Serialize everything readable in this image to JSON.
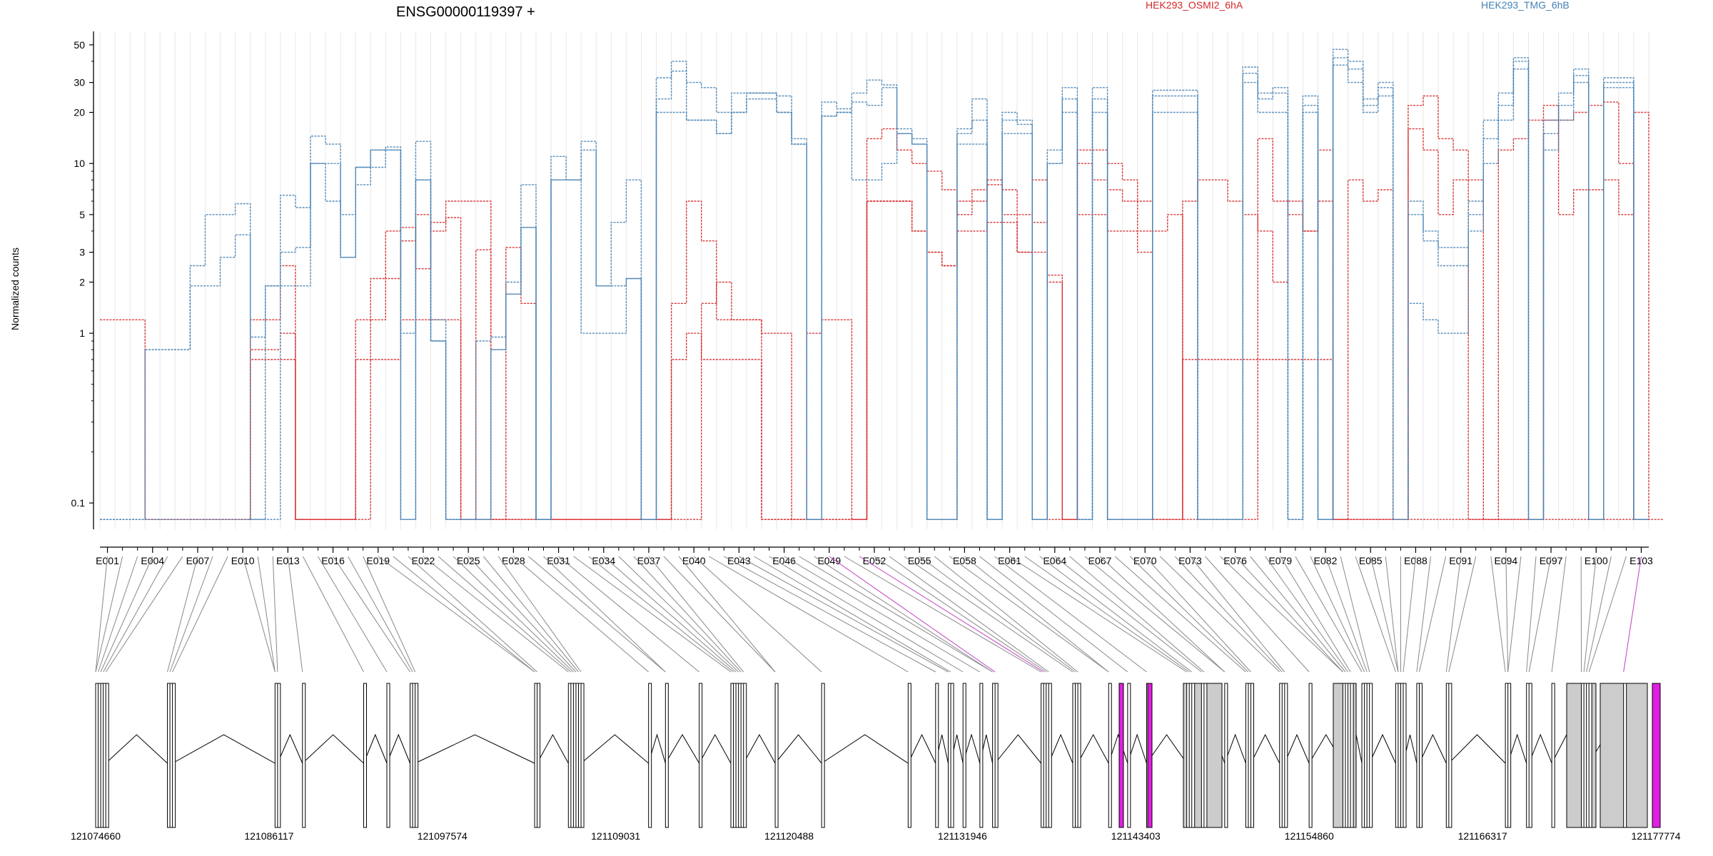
{
  "chart_data": {
    "type": "line",
    "title": "ENSG00000119397 +",
    "ylabel": "Normalized counts",
    "xlabel": "",
    "yscale": "log",
    "ylim": [
      0.07,
      60
    ],
    "yticks": [
      0.1,
      1,
      2,
      3,
      5,
      10,
      20,
      30,
      50
    ],
    "ytick_labels": [
      "0.1",
      "1",
      "2",
      "3",
      "5",
      "10",
      "20",
      "30",
      "50"
    ],
    "grid": "vertical per exon",
    "legend_placement": "top",
    "exon_count": 103,
    "exon_tick_labels": [
      "E001",
      "E004",
      "E007",
      "E010",
      "E013",
      "E016",
      "E019",
      "E022",
      "E025",
      "E028",
      "E031",
      "E034",
      "E037",
      "E040",
      "E043",
      "E046",
      "E049",
      "E052",
      "E055",
      "E058",
      "E061",
      "E064",
      "E067",
      "E070",
      "E073",
      "E076",
      "E079",
      "E082",
      "E085",
      "E088",
      "E091",
      "E094",
      "E097",
      "E100",
      "E103"
    ],
    "series": [
      {
        "name": "HEK293_OSMI2_6hA",
        "color": "#d62728",
        "profiles": [
          [
            1.2,
            1.2,
            1.2,
            0.08,
            0.08,
            0.08,
            0.08,
            0.08,
            0.08,
            0.08,
            1.2,
            1.2,
            2.5,
            0.08,
            0.08,
            0.08,
            0.08,
            0.7,
            1.2,
            2.1,
            3.5,
            5,
            4,
            6,
            6,
            6,
            0.08,
            3.2,
            1.5,
            0.08,
            0.08,
            0.08,
            0.08,
            0.08,
            0.08,
            0.08,
            0.08,
            0.08,
            0.08,
            0.08,
            1.5,
            2,
            1.2,
            1.2,
            1,
            1,
            0.08,
            1,
            1.2,
            1.2,
            0.08,
            14,
            16,
            12,
            10,
            9,
            7,
            5,
            6,
            8,
            5,
            3,
            8,
            0.08,
            0.08,
            10,
            8,
            7,
            6,
            6,
            4,
            5,
            0.08,
            0.08,
            0.08,
            0.08,
            0.08,
            14,
            6,
            5,
            4,
            12,
            0.08,
            8,
            6,
            7,
            0.08,
            22,
            25,
            14,
            12,
            8,
            0.08,
            12,
            14,
            18,
            18,
            5,
            7,
            7,
            8,
            5,
            20,
            0.08
          ],
          [
            0.08,
            0.08,
            0.08,
            0.08,
            0.08,
            0.08,
            0.08,
            0.08,
            0.08,
            0.08,
            0.8,
            0.8,
            1,
            0.08,
            0.08,
            0.08,
            0.08,
            1.2,
            2.1,
            4,
            4.2,
            2.4,
            4.5,
            4.8,
            0.08,
            3.1,
            0.08,
            0.08,
            0.08,
            0.08,
            0.08,
            0.08,
            0.08,
            0.08,
            0.08,
            0.08,
            0.08,
            0.08,
            1.5,
            6,
            3.5,
            1.2,
            1.2,
            1.2,
            0.08,
            0.08,
            0.08,
            0.08,
            0.08,
            0.08,
            0.08,
            6,
            6,
            6,
            4,
            3,
            2.5,
            6,
            7,
            7.5,
            7,
            5,
            4.5,
            2.2,
            0.08,
            12,
            12,
            10,
            8,
            4,
            0.08,
            0.08,
            6,
            8,
            8,
            6,
            5,
            4,
            2,
            6,
            4,
            6,
            0.08,
            0.08,
            0.08,
            0.08,
            0.08,
            16,
            12,
            5,
            8,
            0.08,
            0.08,
            0.08,
            0.08,
            0.08,
            22,
            18,
            20,
            22,
            23,
            10,
            0.08
          ],
          [
            0.08,
            0.08,
            0.08,
            0.08,
            0.08,
            0.08,
            0.08,
            0.08,
            0.08,
            0.08,
            0.7,
            0.7,
            0.7,
            0.08,
            0.08,
            0.08,
            0.08,
            0.08,
            0.7,
            0.7,
            1.2,
            1.2,
            1.2,
            1.2,
            0.08,
            0.08,
            0.08,
            0.08,
            0.08,
            0.08,
            0.08,
            0.08,
            0.08,
            0.08,
            0.08,
            0.08,
            0.08,
            0.08,
            0.7,
            1,
            0.7,
            0.7,
            0.7,
            0.7,
            0.08,
            0.08,
            0.08,
            0.08,
            0.08,
            0.08,
            0.08,
            6,
            6,
            6,
            4,
            3,
            2.5,
            4,
            4,
            4.5,
            4.5,
            3,
            3,
            2,
            0.08,
            5,
            5,
            4,
            4,
            3,
            0.08,
            0.08,
            0.7,
            0.7,
            0.7,
            0.7,
            0.7,
            0.7,
            0.7,
            0.7,
            0.7,
            0.7,
            0.08,
            0.08,
            0.08,
            0.08,
            0.08,
            0.08,
            0.08,
            0.08,
            0.08,
            0.08,
            0.08,
            0.08,
            0.08,
            0.08,
            0.08,
            0.08,
            0.08,
            0.08,
            0.08,
            0.08,
            0.08
          ]
        ]
      },
      {
        "name": "HEK293_TMG_6hB",
        "color": "#4682b4",
        "profiles": [
          [
            0.08,
            0.08,
            0.08,
            0.8,
            0.8,
            0.8,
            2.5,
            5,
            5,
            5.8,
            0.95,
            1.9,
            6.5,
            5.5,
            14.5,
            13,
            5,
            7.5,
            9.5,
            12.5,
            1,
            13.5,
            1.2,
            0.08,
            0.08,
            0.9,
            0.95,
            2,
            7.5,
            0.08,
            11,
            8,
            13.5,
            1.9,
            4.5,
            8,
            0.08,
            32,
            40,
            30,
            28,
            20,
            26,
            26,
            26,
            25,
            14,
            0.08,
            23,
            21,
            26,
            31,
            29,
            16,
            14,
            0.08,
            0.08,
            16,
            24,
            0.08,
            20,
            18,
            0.08,
            12,
            28,
            0.08,
            28,
            0.08,
            0.08,
            0.08,
            27,
            27,
            27,
            0.08,
            0.08,
            0.08,
            37,
            26,
            28,
            0.08,
            25,
            0.08,
            47,
            40,
            24,
            30,
            0.08,
            6,
            4,
            3.2,
            3.2,
            6,
            18,
            26,
            42,
            0.08,
            18,
            26,
            36,
            0.08,
            32,
            32,
            0.08
          ],
          [
            0.08,
            0.08,
            0.08,
            0.8,
            0.8,
            0.8,
            1.9,
            1.9,
            2.8,
            3.8,
            0.08,
            1.9,
            3,
            3.2,
            10,
            10,
            2.8,
            9.5,
            12,
            12,
            0.08,
            8,
            0.9,
            0.08,
            0.08,
            0.08,
            0.8,
            1.7,
            4.2,
            0.08,
            8,
            8,
            12,
            1.9,
            1.9,
            2.1,
            0.08,
            24,
            35,
            18,
            18,
            15,
            20,
            26,
            26,
            20,
            13,
            0.08,
            19,
            20,
            23,
            22,
            28,
            15,
            13,
            0.08,
            0.08,
            15,
            18,
            0.08,
            18,
            17,
            0.08,
            10,
            24,
            0.08,
            24,
            0.08,
            0.08,
            0.08,
            25,
            25,
            25,
            0.08,
            0.08,
            0.08,
            34,
            24,
            26,
            0.08,
            22,
            0.08,
            42,
            36,
            22,
            28,
            0.08,
            5,
            3.5,
            2.5,
            2.5,
            5,
            14,
            22,
            40,
            0.08,
            15,
            22,
            33,
            0.08,
            30,
            30,
            0.08
          ],
          [
            0.08,
            0.08,
            0.08,
            0.08,
            0.08,
            0.08,
            0.08,
            0.08,
            0.08,
            0.08,
            0.08,
            0.08,
            1.9,
            1.9,
            10,
            6,
            2.8,
            9.5,
            12,
            12,
            0.08,
            8,
            0.9,
            0.08,
            0.08,
            0.08,
            0.8,
            1.7,
            4.2,
            0.08,
            8,
            8,
            1,
            1,
            1,
            2.1,
            0.08,
            20,
            20,
            18,
            18,
            15,
            20,
            24,
            24,
            20,
            13,
            0.08,
            19,
            20,
            8,
            8,
            10,
            15,
            13,
            0.08,
            0.08,
            13,
            13,
            0.08,
            15,
            15,
            0.08,
            10,
            20,
            0.08,
            20,
            0.08,
            0.08,
            0.08,
            20,
            20,
            20,
            0.08,
            0.08,
            0.08,
            30,
            20,
            20,
            0.08,
            20,
            0.08,
            38,
            30,
            20,
            25,
            0.08,
            1.5,
            1.2,
            1,
            1,
            4,
            10,
            18,
            36,
            0.08,
            12,
            18,
            30,
            0.08,
            28,
            28,
            0.08
          ]
        ]
      }
    ]
  },
  "gene_model": {
    "coordinate_labels": [
      "121074660",
      "121086117",
      "121097574",
      "121109031",
      "121120488",
      "121131946",
      "121143403",
      "121154860",
      "121166317",
      "121177774"
    ],
    "exon_colors": {
      "default": "#ffffff",
      "grey": "#cccccc",
      "highlight": "#e020e0"
    }
  }
}
